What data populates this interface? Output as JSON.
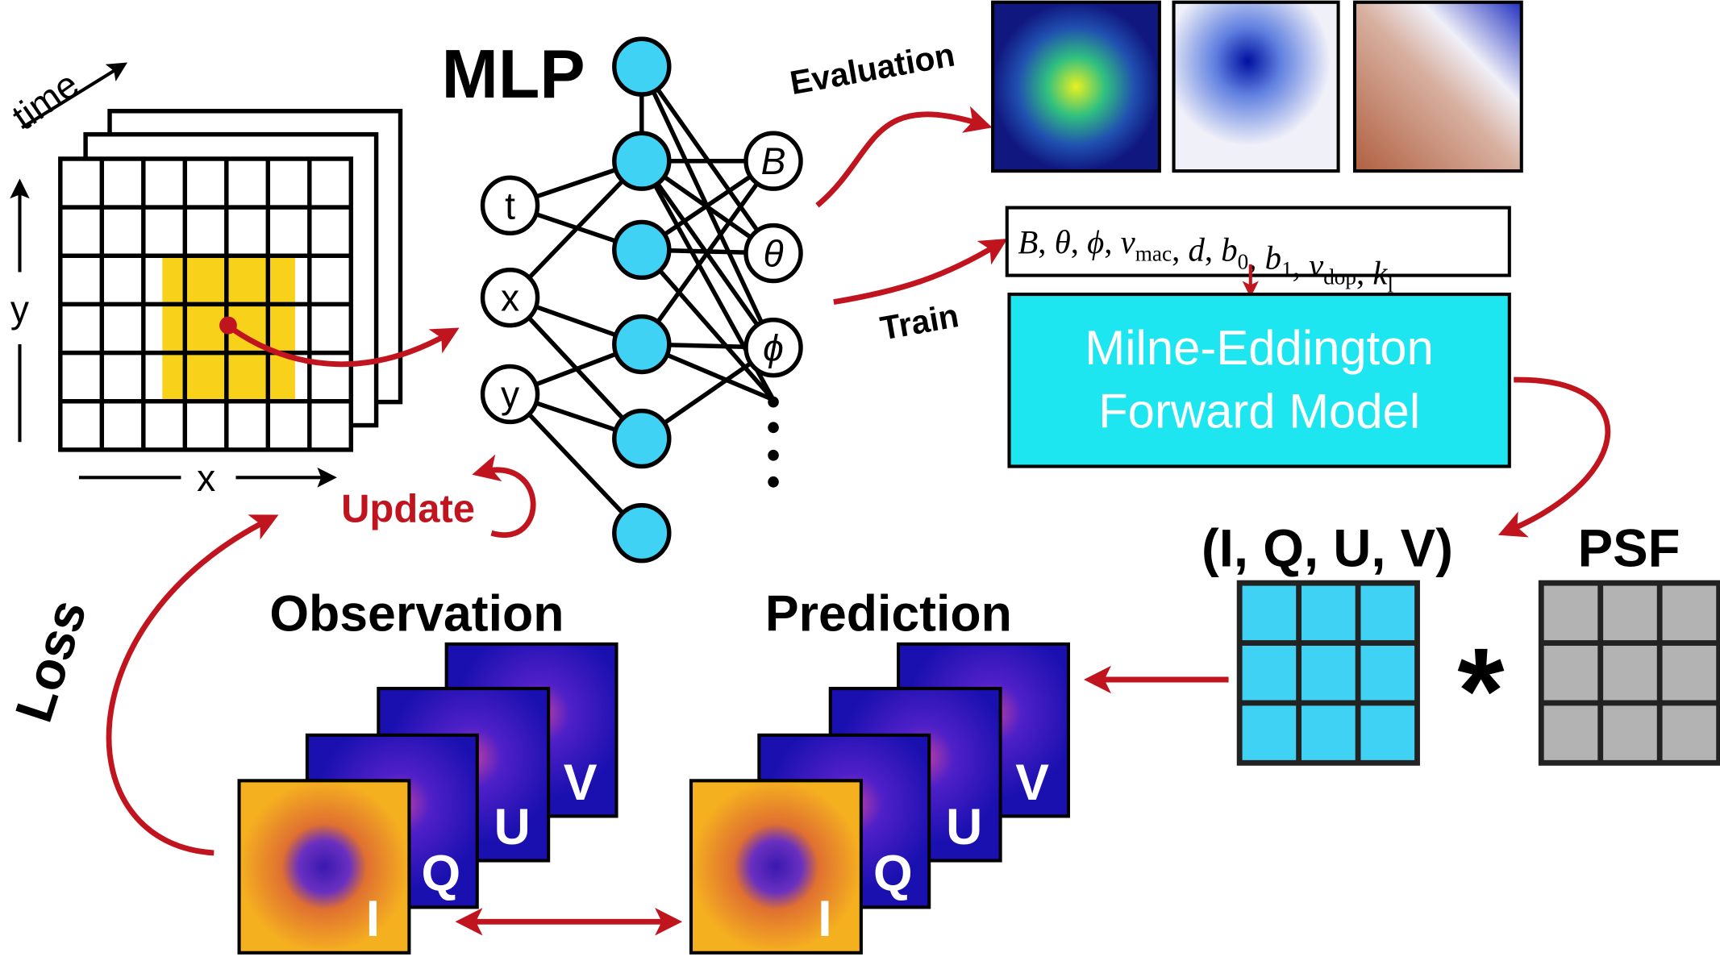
{
  "axes": {
    "time": "time",
    "y": "y",
    "x": "x"
  },
  "mlp": {
    "title": "MLP",
    "inputs": [
      "t",
      "x",
      "y"
    ],
    "outputs": [
      "B",
      "θ",
      "ϕ"
    ]
  },
  "evaluation": "Evaluation",
  "train": "Train",
  "parameters": [
    {
      "symbol": "B"
    },
    {
      "symbol": "θ"
    },
    {
      "symbol": "ϕ"
    },
    {
      "symbol": "v",
      "sub": "mac"
    },
    {
      "symbol": "d"
    },
    {
      "symbol": "b",
      "sub": "0"
    },
    {
      "symbol": "b",
      "sub": "1"
    },
    {
      "symbol": "v",
      "sub": "dop"
    },
    {
      "symbol": "k",
      "sub": "l"
    }
  ],
  "separator": ", ",
  "forward_model": [
    "Milne-Eddington",
    "Forward Model"
  ],
  "stokes": "(I, Q, U, V)",
  "psf": "PSF",
  "operator": "*",
  "update": "Update",
  "loss": "Loss",
  "observation": {
    "title": "Observation",
    "panels": [
      "I",
      "Q",
      "U",
      "V"
    ]
  },
  "prediction": {
    "title": "Prediction",
    "panels": [
      "I",
      "Q",
      "U",
      "V"
    ]
  }
}
